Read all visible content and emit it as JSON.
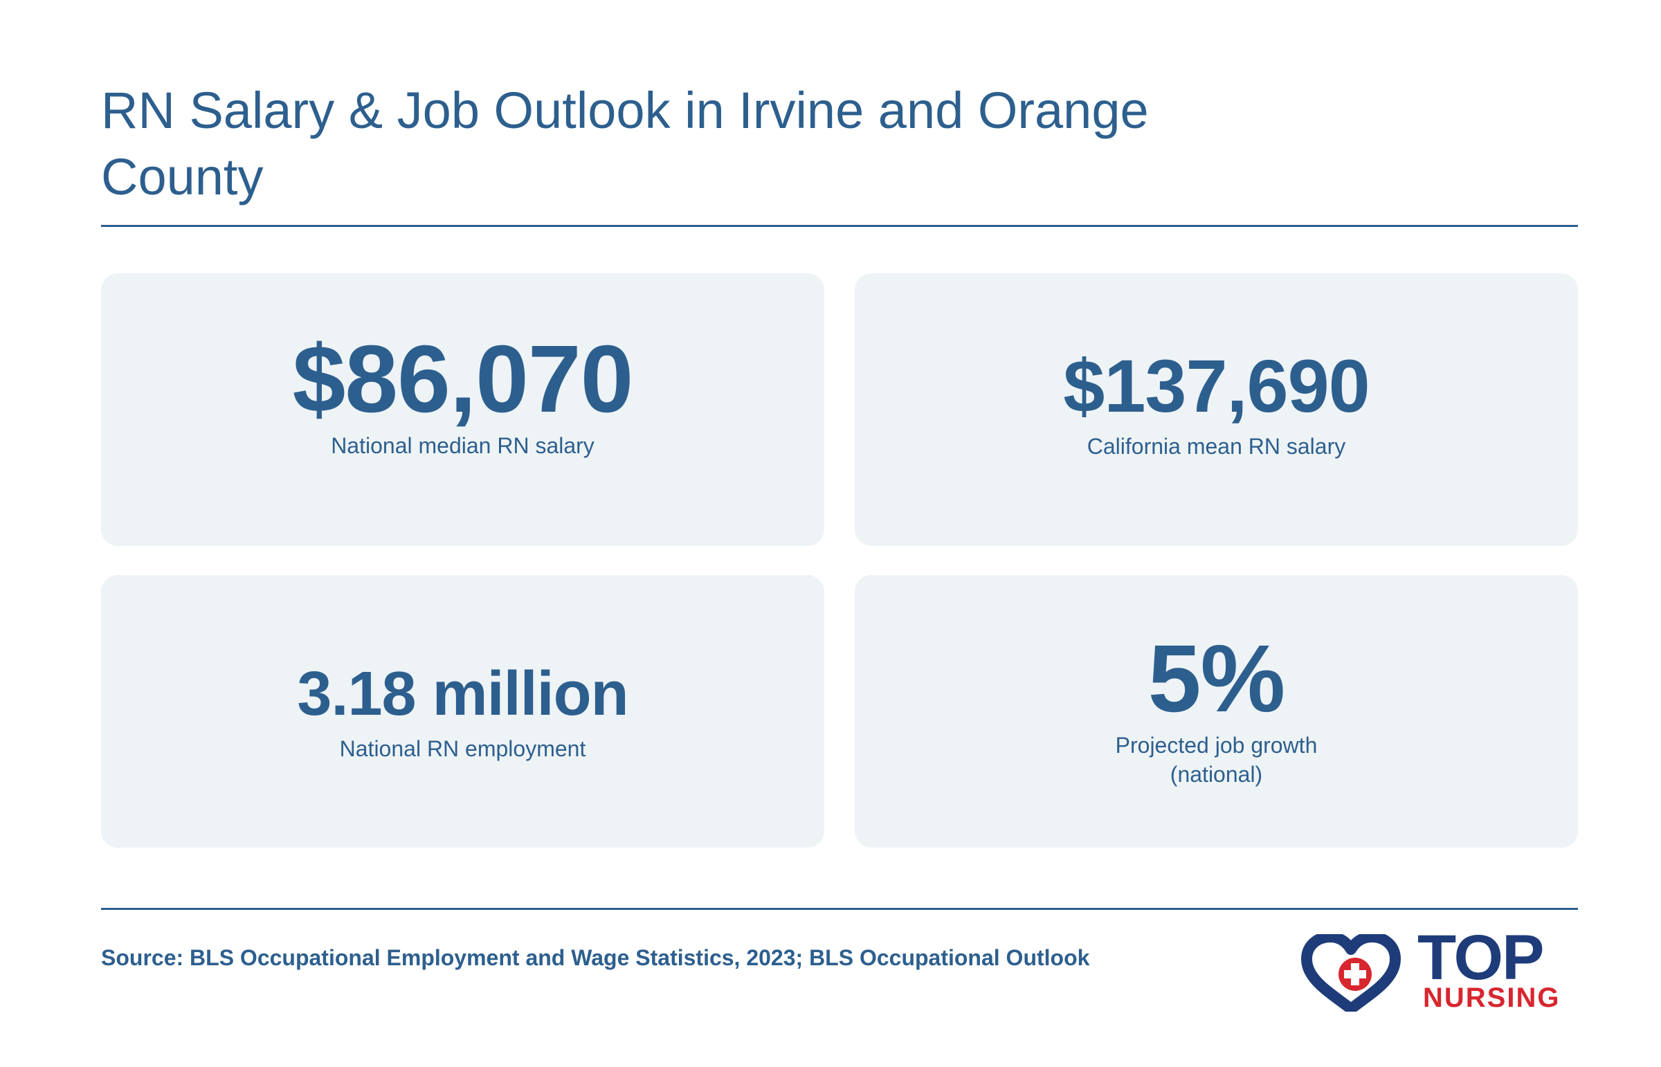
{
  "header": {
    "title": "RN Salary & Job Outlook in Irvine and Orange County"
  },
  "stats": [
    {
      "value": "$86,070",
      "label": "National median RN salary"
    },
    {
      "value": "$137,690",
      "label": "California mean RN salary"
    },
    {
      "value": "3.18 million",
      "label": "National RN employment"
    },
    {
      "value": "5%",
      "label": "Projected job growth (national)"
    }
  ],
  "footer": {
    "source": "Source: BLS Occupational Employment and Wage Statistics, 2023; BLS Occupational Outlook"
  },
  "logo": {
    "line1": "TOP",
    "line2": "NURSING",
    "icon": "heart-cross-icon",
    "colors": {
      "navy": "#1f3c7a",
      "red": "#d8262f"
    }
  },
  "colors": {
    "text": "#2d5f8e",
    "card_background": "#eef3f6",
    "divider": "#2d5f8e"
  }
}
